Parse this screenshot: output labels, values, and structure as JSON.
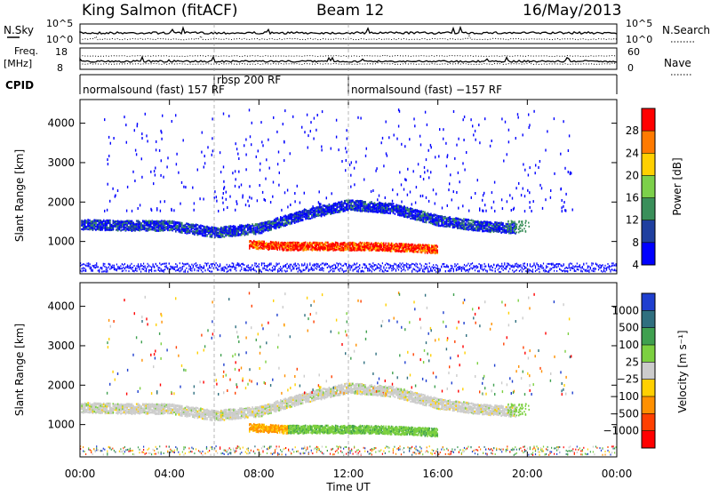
{
  "header": {
    "station": "King Salmon (fitACF)",
    "beam": "Beam 12",
    "date": "16/May/2013"
  },
  "ts_labels": {
    "left_top_1": "N.Sky",
    "left_top_2": "10^5",
    "left_top_3": "10^0",
    "right_top_1": "10^5",
    "right_top_2": "10^0",
    "right_top_label": "N.Search",
    "left_mid_1": "Freq.",
    "left_mid_2": "[MHz]",
    "left_mid_t": "18",
    "left_mid_b": "8",
    "right_mid_t": "60",
    "right_mid_b": "0",
    "right_mid_label": "Nave",
    "cpid_label": "CPID"
  },
  "cpid": [
    {
      "label": "normalsound (fast) 157 RF",
      "start": 0,
      "end": 6
    },
    {
      "label": "rbsp 200 RF",
      "start": 6,
      "end": 12
    },
    {
      "label": "normalsound (fast) −157 RF",
      "start": 12,
      "end": 24
    }
  ],
  "colorbars": {
    "power": {
      "title": "Power [dB]",
      "ticks": [
        "28",
        "24",
        "20",
        "16",
        "12",
        "8",
        "4"
      ],
      "colors": [
        "#ff0000",
        "#ff7a00",
        "#ffd000",
        "#7cd04a",
        "#3a8f5a",
        "#1f3f9f",
        "#0000ff"
      ]
    },
    "velocity": {
      "title": "Velocity [m s⁻¹]",
      "ticks": [
        "1000",
        "500",
        "100",
        "25",
        "−25",
        "−100",
        "−500",
        "−1000"
      ],
      "colors": [
        "#1f3fcf",
        "#2f6f7f",
        "#3fa04f",
        "#7cd040",
        "#cccccc",
        "#ffd000",
        "#ff9000",
        "#ff4000",
        "#ff0000"
      ]
    }
  },
  "chart_data": [
    {
      "type": "heatmap",
      "title": "Power",
      "xlabel": "Time UT",
      "ylabel": "Slant Range [km]",
      "x_unit": "hours UT",
      "xlim": [
        0,
        24
      ],
      "ylim": [
        180,
        4600
      ],
      "x_ticks": [
        "00:00",
        "04:00",
        "08:00",
        "12:00",
        "16:00",
        "20:00",
        "00:00"
      ],
      "y_ticks": [
        1000,
        2000,
        3000,
        4000
      ],
      "colorbar_range_db": [
        0,
        30
      ],
      "bands": [
        {
          "name": "main echo band",
          "points": [
            [
              0,
              1450
            ],
            [
              2,
              1420
            ],
            [
              4,
              1420
            ],
            [
              6,
              1250
            ],
            [
              8,
              1350
            ],
            [
              10,
              1700
            ],
            [
              12,
              1950
            ],
            [
              14,
              1850
            ],
            [
              16,
              1550
            ],
            [
              18,
              1400
            ],
            [
              19.5,
              1350
            ]
          ],
          "power_db": 6
        },
        {
          "name": "strong near-range band",
          "points": [
            [
              7.5,
              950
            ],
            [
              9,
              900
            ],
            [
              11,
              900
            ],
            [
              13,
              900
            ],
            [
              15,
              850
            ],
            [
              16,
              820
            ]
          ],
          "power_db": 28
        }
      ]
    },
    {
      "type": "heatmap",
      "title": "Velocity",
      "xlabel": "Time UT",
      "ylabel": "Slant Range [km]",
      "x_unit": "hours UT",
      "xlim": [
        0,
        24
      ],
      "ylim": [
        180,
        4600
      ],
      "x_ticks": [
        "00:00",
        "04:00",
        "08:00",
        "12:00",
        "16:00",
        "20:00",
        "00:00"
      ],
      "y_ticks": [
        1000,
        2000,
        3000,
        4000
      ],
      "colorbar_range": [
        -1000,
        1000
      ],
      "bands": [
        {
          "name": "main echo band",
          "points": [
            [
              0,
              1450
            ],
            [
              2,
              1420
            ],
            [
              4,
              1420
            ],
            [
              6,
              1250
            ],
            [
              8,
              1350
            ],
            [
              10,
              1700
            ],
            [
              12,
              1950
            ],
            [
              14,
              1850
            ],
            [
              16,
              1550
            ],
            [
              18,
              1400
            ],
            [
              19.5,
              1350
            ]
          ],
          "velocity": 0
        },
        {
          "name": "near-range band",
          "points": [
            [
              7.5,
              950
            ],
            [
              9,
              900
            ],
            [
              11,
              900
            ],
            [
              13,
              900
            ],
            [
              15,
              850
            ],
            [
              16,
              820
            ]
          ],
          "velocity": 100
        },
        {
          "name": "near-range negative patch",
          "points": [
            [
              6.5,
              950
            ],
            [
              7,
              1000
            ],
            [
              8,
              1050
            ],
            [
              9,
              950
            ]
          ],
          "velocity": -500
        }
      ]
    }
  ]
}
